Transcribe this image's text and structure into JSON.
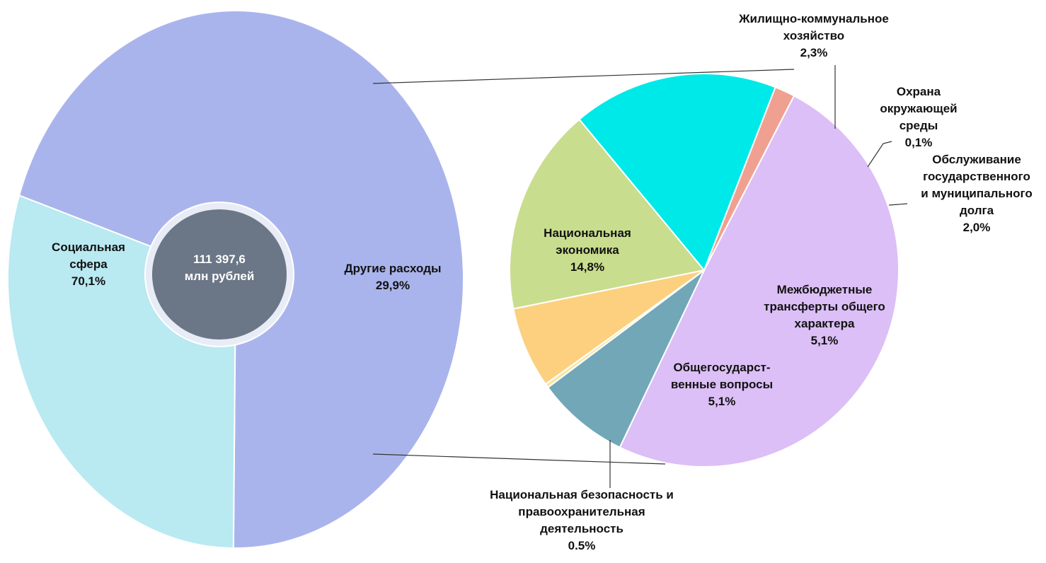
{
  "chart_data": [
    {
      "type": "pie",
      "categories": [
        "Социальная\nсфера",
        "Другие расходы"
      ],
      "values": [
        70.1,
        29.9
      ],
      "value_labels": [
        "70,1%",
        "29,9%"
      ],
      "colors": [
        "#aab4ec",
        "#b9e9f1"
      ],
      "center_label": "111 397,6\nмлн рублей"
    },
    {
      "type": "pie",
      "categories": [
        "Национальная\nэкономика",
        "Жилищно-коммунальное\nхозяйство",
        "Охрана\nокружающей\nсреды",
        "Обслуживание\nгосударственного\nи муниципального\nдолга",
        "Межбюджетные\nтрансферты общего\nхарактера",
        "Общегосударст-\nвенные вопросы",
        "Национальная безопасность и\nправоохранительная\nдеятельность"
      ],
      "values": [
        14.8,
        2.3,
        0.1,
        2.0,
        5.1,
        5.1,
        0.5
      ],
      "value_labels": [
        "14,8%",
        "2,3%",
        "0,1%",
        "2,0%",
        "5,1%",
        "5,1%",
        "0.5%"
      ],
      "colors": [
        "#dcbff6",
        "#72a7b8",
        "#f6e8a4",
        "#fcd07f",
        "#c9dd8e",
        "#00e9e9",
        "#f0a090"
      ]
    }
  ]
}
